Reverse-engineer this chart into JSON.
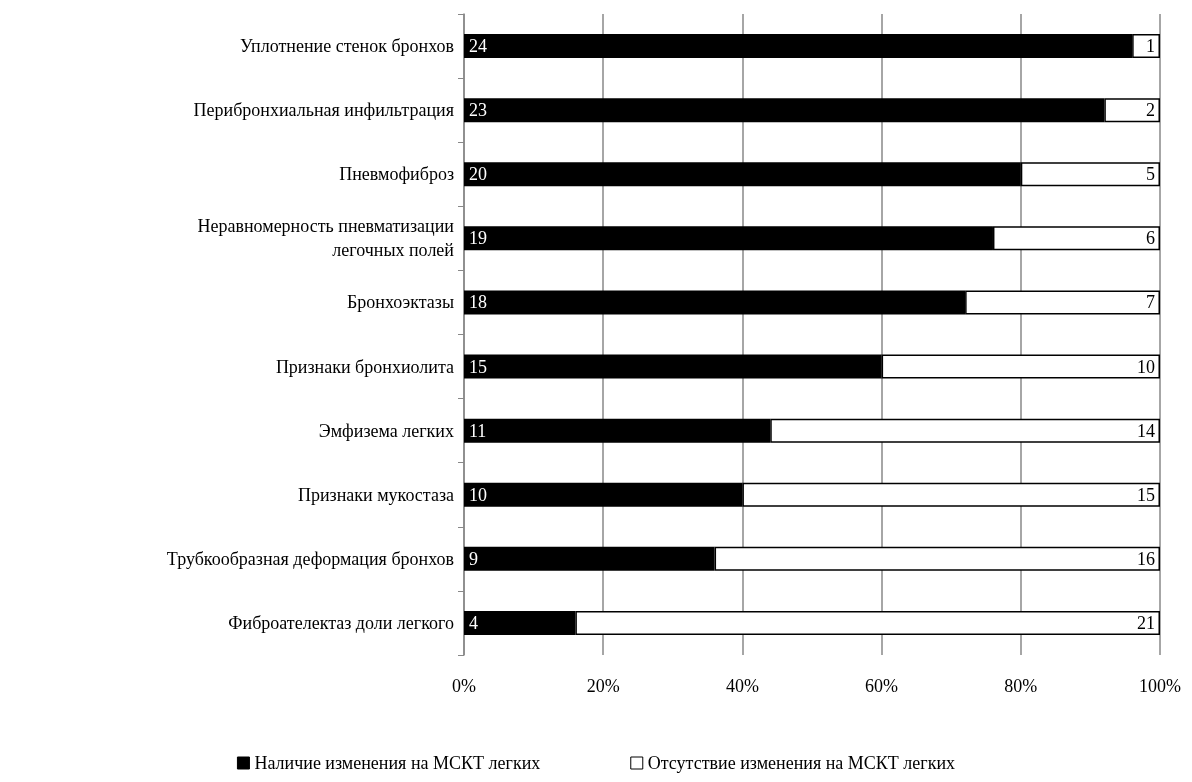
{
  "chart_data": {
    "type": "bar",
    "orientation": "horizontal",
    "stacked": true,
    "categories": [
      "Уплотнение стенок бронхов",
      "Перибронхиальная инфильтрация",
      "Пневмофиброз",
      "Неравномерность пневматизации\nлегочных полей",
      "Бронхоэктазы",
      "Признаки бронхиолита",
      "Эмфизема легких",
      "Признаки мукостаза",
      "Трубкообразная деформация бронхов",
      "Фиброателектаз доли легкого"
    ],
    "series": [
      {
        "name": "Наличие изменения на МСКТ легких",
        "color": "#000000",
        "values": [
          96,
          92,
          80,
          76,
          72,
          60,
          44,
          40,
          36,
          16
        ]
      },
      {
        "name": "Отсутствие изменения на МСКТ легких",
        "color": "#ffffff",
        "values": [
          4,
          8,
          20,
          24,
          28,
          40,
          56,
          60,
          64,
          84
        ]
      }
    ],
    "annotations": [
      "24",
      "23",
      "20",
      "19",
      "18",
      "15",
      "11",
      "10",
      "9",
      "4",
      "1",
      "2",
      "5",
      "6",
      "7",
      "10",
      "14",
      "15",
      "16",
      "21"
    ],
    "xlim": [
      0,
      100
    ],
    "xticks": [
      {
        "value": 0,
        "label": "0%"
      },
      {
        "value": 20,
        "label": "20%"
      },
      {
        "value": 40,
        "label": "40%"
      },
      {
        "value": 60,
        "label": "60%"
      },
      {
        "value": 80,
        "label": "80%"
      },
      {
        "value": 100,
        "label": "100%"
      }
    ],
    "grid": "x",
    "legend": "bottom"
  }
}
